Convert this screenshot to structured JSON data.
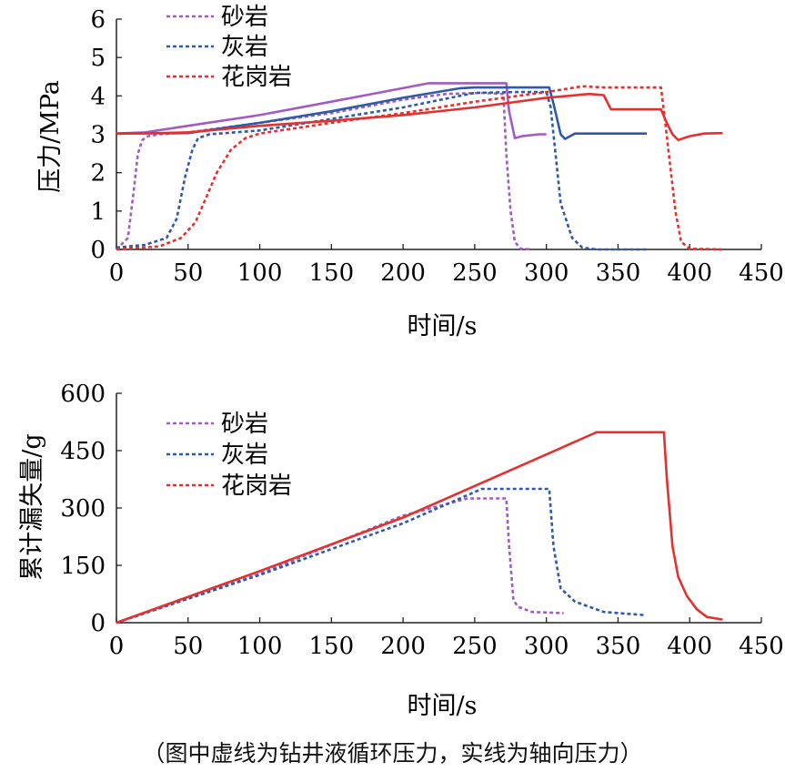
{
  "caption": "（图中虚线为钻井液循环压力，实线为轴向压力）",
  "chart_data": [
    {
      "type": "line",
      "xlabel": "时间/s",
      "ylabel": "压力/MPa",
      "xlim": [
        0,
        450
      ],
      "ylim": [
        0,
        6
      ],
      "xticks": [
        0,
        50,
        100,
        150,
        200,
        250,
        300,
        350,
        400,
        450
      ],
      "yticks": [
        0,
        1,
        2,
        3,
        4,
        5,
        6
      ],
      "legend_position": "top-left",
      "grid": false,
      "legend": [
        {
          "name": "砂岩",
          "color": "#a05cc0",
          "dash": true
        },
        {
          "name": "灰岩",
          "color": "#2e5aa8",
          "dash": true
        },
        {
          "name": "花岗岩",
          "color": "#e53030",
          "dash": true
        }
      ],
      "series": [
        {
          "name": "砂岩",
          "kind": "axial-pressure",
          "color": "#a05cc0",
          "dashed": false,
          "x": [
            0,
            20,
            50,
            100,
            150,
            218,
            225,
            272,
            274,
            278,
            283,
            295,
            300
          ],
          "y": [
            3.02,
            3.05,
            3.22,
            3.5,
            3.85,
            4.33,
            4.33,
            4.33,
            3.6,
            2.9,
            2.95,
            3.0,
            3.0
          ]
        },
        {
          "name": "砂岩",
          "kind": "circulating-pressure",
          "color": "#a05cc0",
          "dashed": true,
          "x": [
            0,
            8,
            12,
            15,
            18,
            22,
            30,
            50,
            100,
            150,
            200,
            230,
            255,
            270,
            272,
            275,
            278,
            282,
            290
          ],
          "y": [
            0,
            0.3,
            1.5,
            2.5,
            2.85,
            2.95,
            3.0,
            3.05,
            3.3,
            3.55,
            3.9,
            4.05,
            4.08,
            4.05,
            2.5,
            1.0,
            0.2,
            0.02,
            0
          ]
        },
        {
          "name": "灰岩",
          "kind": "axial-pressure",
          "color": "#2e5aa8",
          "dashed": false,
          "x": [
            0,
            50,
            100,
            150,
            200,
            240,
            250,
            302,
            305,
            310,
            313,
            320,
            350,
            370
          ],
          "y": [
            3.02,
            3.03,
            3.3,
            3.6,
            3.95,
            4.2,
            4.22,
            4.22,
            3.8,
            3.0,
            2.88,
            3.02,
            3.02,
            3.02
          ]
        },
        {
          "name": "灰岩",
          "kind": "circulating-pressure",
          "color": "#2e5aa8",
          "dashed": true,
          "x": [
            0,
            20,
            35,
            42,
            48,
            53,
            57,
            65,
            100,
            150,
            200,
            250,
            280,
            300,
            303,
            305,
            310,
            318,
            325,
            335,
            370
          ],
          "y": [
            0.05,
            0.12,
            0.3,
            0.8,
            1.9,
            2.6,
            2.9,
            3.0,
            3.1,
            3.4,
            3.7,
            4.08,
            4.1,
            4.1,
            3.7,
            3.0,
            1.2,
            0.3,
            0.05,
            0,
            0
          ]
        },
        {
          "name": "花岗岩",
          "kind": "axial-pressure",
          "color": "#e53030",
          "dashed": false,
          "x": [
            0,
            30,
            50,
            100,
            150,
            200,
            250,
            300,
            330,
            340,
            345,
            350,
            380,
            384,
            388,
            392,
            400,
            410,
            423
          ],
          "y": [
            3.02,
            3.03,
            3.05,
            3.22,
            3.35,
            3.5,
            3.7,
            3.95,
            4.05,
            4.02,
            3.65,
            3.65,
            3.65,
            3.3,
            3.0,
            2.85,
            2.95,
            3.02,
            3.03
          ]
        },
        {
          "name": "花岗岩",
          "kind": "circulating-pressure",
          "color": "#e53030",
          "dashed": true,
          "x": [
            0,
            30,
            45,
            55,
            62,
            70,
            80,
            90,
            100,
            150,
            200,
            250,
            300,
            325,
            340,
            380,
            383,
            386,
            390,
            394,
            400,
            423
          ],
          "y": [
            0,
            0.08,
            0.3,
            0.7,
            1.3,
            2.0,
            2.6,
            2.9,
            3.02,
            3.3,
            3.55,
            3.85,
            4.1,
            4.25,
            4.22,
            4.22,
            3.3,
            2.3,
            1.0,
            0.2,
            0.02,
            0
          ]
        }
      ]
    },
    {
      "type": "line",
      "xlabel": "时间/s",
      "ylabel": "累计漏失量/g",
      "xlim": [
        0,
        450
      ],
      "ylim": [
        0,
        600
      ],
      "xticks": [
        0,
        50,
        100,
        150,
        200,
        250,
        300,
        350,
        400,
        450
      ],
      "yticks": [
        0,
        150,
        300,
        450,
        600
      ],
      "legend_position": "top-left",
      "grid": false,
      "legend": [
        {
          "name": "砂岩",
          "color": "#a05cc0",
          "dash": true
        },
        {
          "name": "灰岩",
          "color": "#2e5aa8",
          "dash": true
        },
        {
          "name": "花岗岩",
          "color": "#e53030",
          "dash": true
        }
      ],
      "series": [
        {
          "name": "砂岩",
          "color": "#a05cc0",
          "dashed": true,
          "x": [
            0,
            100,
            200,
            245,
            272,
            274,
            277,
            280,
            290,
            312
          ],
          "y": [
            0,
            128,
            280,
            325,
            325,
            200,
            60,
            42,
            28,
            25
          ]
        },
        {
          "name": "灰岩",
          "color": "#2e5aa8",
          "dashed": true,
          "x": [
            0,
            100,
            200,
            255,
            302,
            305,
            310,
            320,
            340,
            368
          ],
          "y": [
            0,
            125,
            260,
            350,
            350,
            200,
            90,
            55,
            28,
            20
          ]
        },
        {
          "name": "花岗岩",
          "color": "#e53030",
          "dashed": false,
          "x": [
            0,
            100,
            200,
            300,
            335,
            382,
            384,
            388,
            392,
            398,
            405,
            412,
            423
          ],
          "y": [
            0,
            135,
            275,
            440,
            498,
            498,
            380,
            200,
            120,
            70,
            35,
            15,
            8
          ]
        }
      ]
    }
  ]
}
